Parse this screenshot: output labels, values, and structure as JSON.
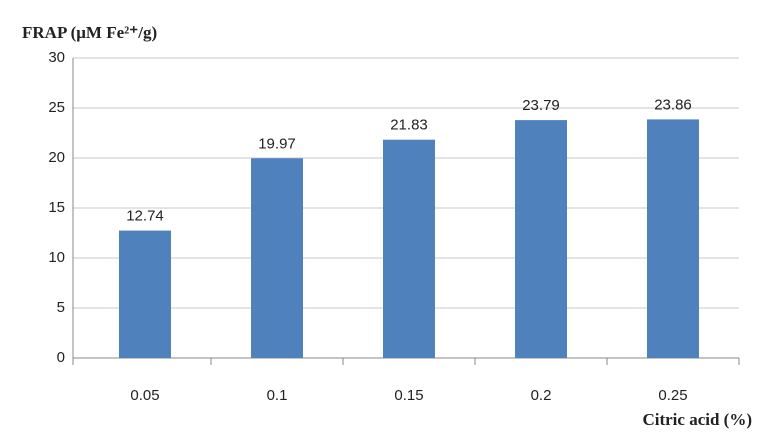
{
  "chart_data": {
    "type": "bar",
    "y_axis_title": "FRAP (μM Fe²⁺/g)",
    "x_axis_title": "Citric acid (%)",
    "categories": [
      "0.05",
      "0.1",
      "0.15",
      "0.2",
      "0.25"
    ],
    "values": [
      12.74,
      19.97,
      21.83,
      23.79,
      23.86
    ],
    "color": "#4f81bd",
    "ylim": [
      0,
      30
    ],
    "yticks": [
      0,
      5,
      10,
      15,
      20,
      25,
      30
    ],
    "grid": true,
    "data_labels": true
  }
}
